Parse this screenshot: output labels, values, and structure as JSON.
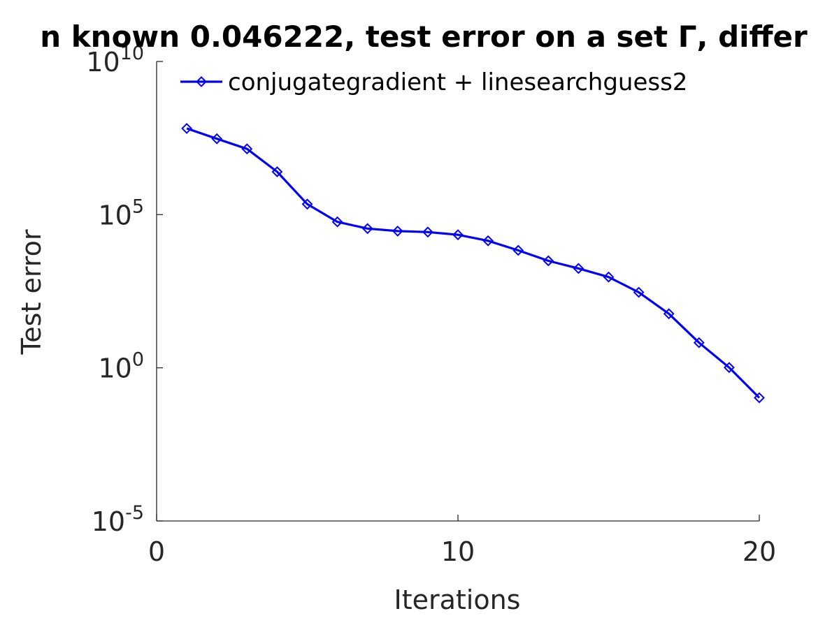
{
  "chart_data": {
    "type": "line",
    "title": "n known 0.046222, test error on a set  Γ, differ",
    "xlabel": "Iterations",
    "ylabel": "Test error",
    "xlim": [
      0,
      20
    ],
    "ylim": [
      1e-05,
      10000000000.0
    ],
    "yscale": "log",
    "grid": false,
    "legend_position": "top-left",
    "xticks": [
      0,
      10,
      20
    ],
    "xtick_labels": [
      "0",
      "10",
      "20"
    ],
    "yticks": [
      1e-05,
      1,
      100000.0,
      10000000000.0
    ],
    "ytick_labels": [
      {
        "base": "10",
        "exp": "-5"
      },
      {
        "base": "10",
        "exp": "0"
      },
      {
        "base": "10",
        "exp": "5"
      },
      {
        "base": "10",
        "exp": "10"
      }
    ],
    "series": [
      {
        "name": "conjugategradient + linesearchguess2",
        "color": "#0000ff",
        "marker": "diamond",
        "x": [
          1,
          2,
          3,
          4,
          5,
          6,
          7,
          8,
          9,
          10,
          11,
          12,
          13,
          14,
          15,
          16,
          17,
          18,
          19,
          20
        ],
        "y": [
          65000000,
          30000000,
          14000000,
          2500000,
          220000,
          58000,
          35000,
          29000,
          27000,
          22000,
          14000,
          6800,
          3100,
          1750,
          920,
          290,
          58,
          6.6,
          1.02,
          0.105
        ]
      }
    ]
  }
}
